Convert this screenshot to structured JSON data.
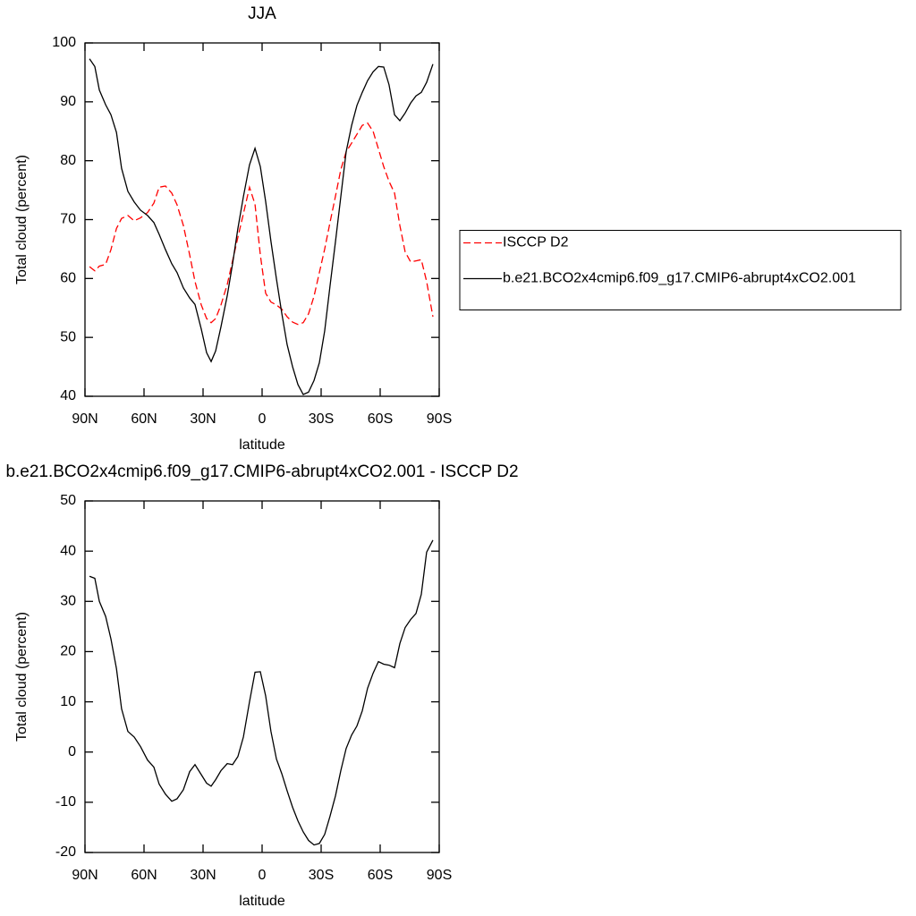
{
  "chart_data": [
    {
      "type": "line",
      "title": "JJA",
      "xlabel": "latitude",
      "ylabel": "Total cloud (percent)",
      "x": [
        87.7,
        85,
        82.7,
        79.5,
        76.8,
        74,
        71.4,
        68.2,
        65,
        61.8,
        58.2,
        55,
        52.3,
        49.1,
        45.9,
        43.2,
        40,
        36.8,
        34.1,
        30.9,
        28.2,
        25.9,
        23.6,
        20.9,
        17.7,
        15,
        12.3,
        9.5,
        6.4,
        3.6,
        0.9,
        -1.8,
        -4.5,
        -7.3,
        -10,
        -12.7,
        -15.5,
        -18.2,
        -20.9,
        -23.6,
        -26.4,
        -29.1,
        -31.8,
        -34.5,
        -37.3,
        -40,
        -42.7,
        -45.5,
        -48.2,
        -50.9,
        -53.6,
        -56.4,
        -59.1,
        -61.8,
        -64.5,
        -67.3,
        -70,
        -72.7,
        -75.5,
        -78.2,
        -80.9,
        -83.6,
        -86.8
      ],
      "xlim": [
        90,
        -90
      ],
      "xticks": [
        {
          "value": 90,
          "label": "90N"
        },
        {
          "value": 60,
          "label": "60N"
        },
        {
          "value": 30,
          "label": "30N"
        },
        0,
        {
          "value": -30,
          "label": "30S"
        },
        {
          "value": -60,
          "label": "60S"
        },
        {
          "value": -90,
          "label": "90S"
        }
      ],
      "ylim": [
        40,
        100
      ],
      "yticks": [
        40,
        50,
        60,
        70,
        80,
        90,
        100
      ],
      "legend": "right",
      "series": [
        {
          "name": "ISCCP D2",
          "color": "#ff0000",
          "linestyle": "dashed",
          "values": [
            62,
            61.3,
            62.1,
            62.4,
            64.9,
            68.5,
            70.2,
            70.7,
            69.8,
            70.3,
            71.2,
            72.8,
            75.5,
            75.7,
            74.5,
            72.5,
            69,
            64,
            59.5,
            55.5,
            53.2,
            52.5,
            53.2,
            55.5,
            59,
            63,
            67,
            71,
            75.5,
            72.6,
            64,
            57.5,
            56,
            55.5,
            54.8,
            53.5,
            52.6,
            52.2,
            52.5,
            54,
            57,
            61,
            65,
            69.5,
            74,
            78.5,
            81.5,
            83,
            84.5,
            86,
            86.4,
            85,
            82,
            79,
            76.5,
            74.5,
            69,
            64.5,
            62.8,
            63,
            63.2,
            59.5,
            53.5
          ]
        },
        {
          "name": "b.e21.BCO2x4cmip6.f09_g17.CMIP6-abrupt4xCO2.001",
          "color": "#000000",
          "linestyle": "solid",
          "values": [
            97.3,
            96,
            92,
            89.5,
            87.8,
            84.8,
            78.7,
            74.8,
            73,
            71.6,
            70.7,
            69.5,
            67.5,
            64.9,
            62.5,
            61,
            58.4,
            56.7,
            55.6,
            51.4,
            47.4,
            45.9,
            47.7,
            51.8,
            57.1,
            62.5,
            68.5,
            73.9,
            79.3,
            82.1,
            79,
            73.1,
            66.3,
            59.9,
            54.1,
            48.8,
            45,
            42,
            40.3,
            40.7,
            42.7,
            45.7,
            51.1,
            58.7,
            66.3,
            73.9,
            81.5,
            86,
            89.4,
            91.6,
            93.6,
            95.1,
            96,
            95.9,
            92.9,
            87.8,
            86.8,
            88.1,
            89.8,
            91,
            91.6,
            93.3,
            96.4
          ]
        }
      ]
    },
    {
      "type": "line",
      "title": "b.e21.BCO2x4cmip6.f09_g17.CMIP6-abrupt4xCO2.001 - ISCCP D2",
      "xlabel": "latitude",
      "ylabel": "Total cloud (percent)",
      "x": [
        87.7,
        85,
        82.7,
        79.5,
        76.8,
        74,
        71.4,
        68.2,
        65,
        61.8,
        58.2,
        55,
        52.3,
        49.1,
        45.9,
        43.2,
        40,
        36.8,
        34.1,
        30.9,
        28.2,
        25.9,
        23.6,
        20.9,
        17.7,
        15,
        12.3,
        9.5,
        6.4,
        3.6,
        0.9,
        -1.8,
        -4.5,
        -7.3,
        -10,
        -12.7,
        -15.5,
        -18.2,
        -20.9,
        -23.6,
        -26.4,
        -29.1,
        -31.8,
        -34.5,
        -37.3,
        -40,
        -42.7,
        -45.5,
        -48.2,
        -50.9,
        -53.6,
        -56.4,
        -59.1,
        -61.8,
        -64.5,
        -67.3,
        -70,
        -72.7,
        -75.5,
        -78.2,
        -80.9,
        -83.6,
        -86.8
      ],
      "xlim": [
        90,
        -90
      ],
      "xticks": [
        {
          "value": 90,
          "label": "90N"
        },
        {
          "value": 60,
          "label": "60N"
        },
        {
          "value": 30,
          "label": "30N"
        },
        0,
        {
          "value": -30,
          "label": "30S"
        },
        {
          "value": -60,
          "label": "60S"
        },
        {
          "value": -90,
          "label": "90S"
        }
      ],
      "ylim": [
        -20,
        50
      ],
      "yticks": [
        -20,
        -10,
        0,
        10,
        20,
        30,
        40,
        50
      ],
      "series": [
        {
          "color": "#000000",
          "linestyle": "solid",
          "values": [
            35,
            34.6,
            30,
            27,
            22.5,
            16.6,
            8.6,
            4.1,
            3,
            1.1,
            -1.6,
            -3,
            -6.4,
            -8.4,
            -9.8,
            -9.3,
            -7.5,
            -3.9,
            -2.5,
            -4.5,
            -6.2,
            -6.8,
            -5.5,
            -3.7,
            -2.3,
            -2.5,
            -0.9,
            3,
            10,
            15.9,
            16,
            11.2,
            4.1,
            -1.4,
            -4.3,
            -7.7,
            -11,
            -13.7,
            -15.9,
            -17.6,
            -18.5,
            -18.2,
            -16.4,
            -12.8,
            -8.7,
            -3.7,
            0.7,
            3.4,
            5.2,
            8.2,
            12.7,
            15.7,
            18,
            17.5,
            17.3,
            16.8,
            21.6,
            24.8,
            26.4,
            27.6,
            31.4,
            39.8,
            42.2
          ]
        }
      ]
    }
  ]
}
